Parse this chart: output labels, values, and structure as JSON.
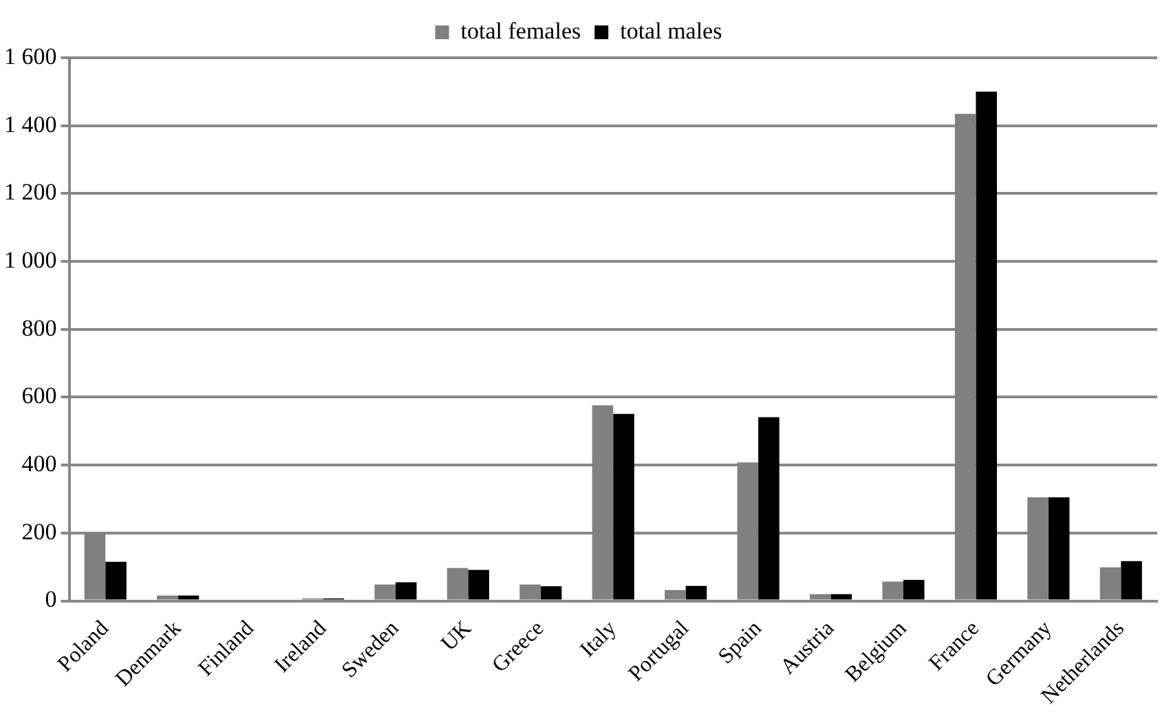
{
  "chart_data": {
    "type": "bar",
    "categories": [
      "Poland",
      "Denmark",
      "Finland",
      "Ireland",
      "Sweden",
      "UK",
      "Greece",
      "Italy",
      "Portugal",
      "Spain",
      "Austria",
      "Belgium",
      "France",
      "Germany",
      "Netherlands"
    ],
    "series": [
      {
        "name": "total females",
        "color": "#808080",
        "values": [
          200,
          16,
          null,
          7,
          48,
          97,
          48,
          576,
          32,
          408,
          20,
          57,
          1435,
          305,
          99
        ]
      },
      {
        "name": "total males",
        "color": "#000000",
        "values": [
          115,
          16,
          null,
          7,
          55,
          91,
          43,
          551,
          44,
          541,
          20,
          62,
          1500,
          305,
          117
        ]
      }
    ],
    "ylim": [
      0,
      1600
    ],
    "yticks": [
      {
        "value": 0,
        "label": "0"
      },
      {
        "value": 200,
        "label": "200"
      },
      {
        "value": 400,
        "label": "400"
      },
      {
        "value": 600,
        "label": "600"
      },
      {
        "value": 800,
        "label": "800"
      },
      {
        "value": 1000,
        "label": "1 000"
      },
      {
        "value": 1200,
        "label": "1 200"
      },
      {
        "value": 1400,
        "label": "1 400"
      },
      {
        "value": 1600,
        "label": "1 600"
      }
    ],
    "grid": "y",
    "legend": "top"
  }
}
